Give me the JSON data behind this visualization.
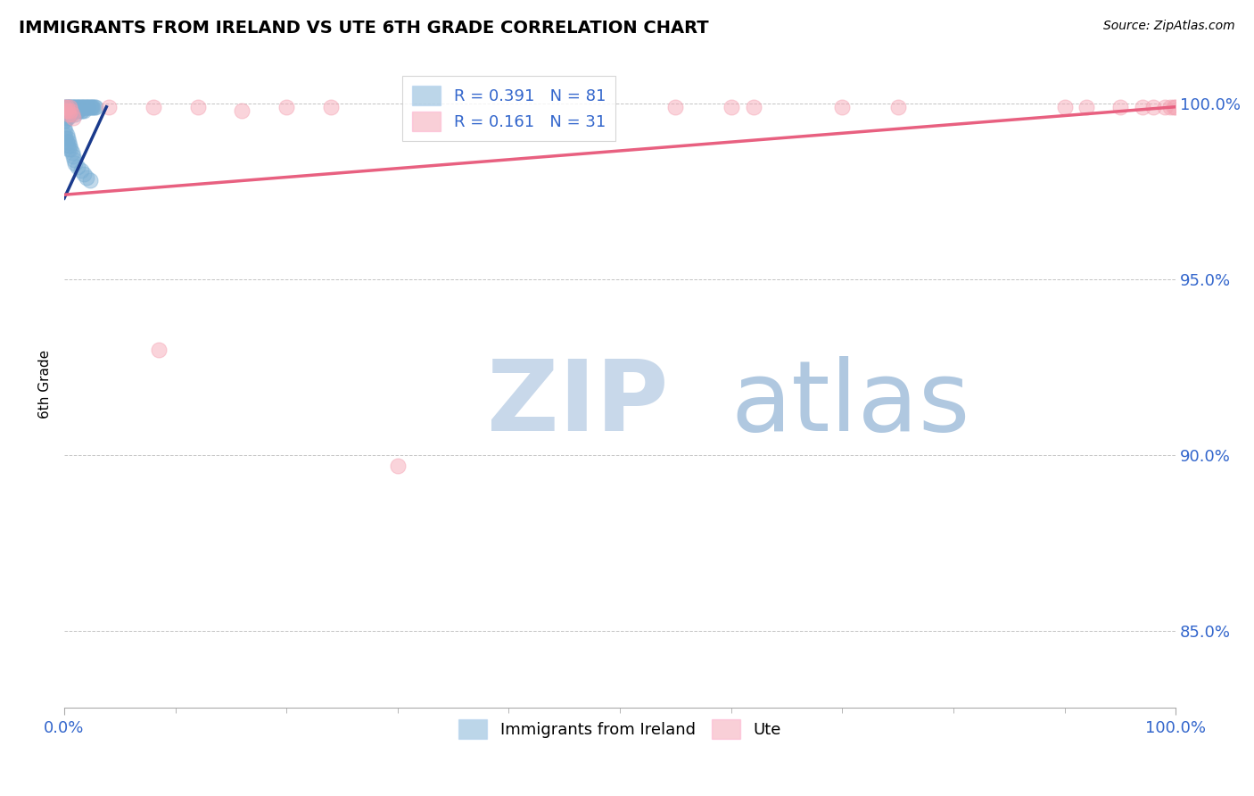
{
  "title": "IMMIGRANTS FROM IRELAND VS UTE 6TH GRADE CORRELATION CHART",
  "source_text": "Source: ZipAtlas.com",
  "ylabel": "6th Grade",
  "x_min": 0.0,
  "x_max": 1.0,
  "y_min": 0.828,
  "y_max": 1.012,
  "y_ticks": [
    0.85,
    0.9,
    0.95,
    1.0
  ],
  "y_tick_labels": [
    "85.0%",
    "90.0%",
    "95.0%",
    "100.0%"
  ],
  "x_tick_labels": [
    "0.0%",
    "100.0%"
  ],
  "legend_r1": "R = 0.391",
  "legend_n1": "N = 81",
  "legend_r2": "R = 0.161",
  "legend_n2": "N = 31",
  "blue_color": "#7BAFD4",
  "pink_color": "#F4A0B0",
  "blue_line_color": "#1A3A8C",
  "pink_line_color": "#E86080",
  "watermark_zip_color": "#C8D8EA",
  "watermark_atlas_color": "#B0C8E0",
  "dashed_line_y": 0.999,
  "blue_line_x0": 0.0,
  "blue_line_y0": 0.973,
  "blue_line_x1": 0.038,
  "blue_line_y1": 0.999,
  "pink_line_x0": 0.0,
  "pink_line_y0": 0.974,
  "pink_line_x1": 1.0,
  "pink_line_y1": 0.999,
  "blue_scatter_x": [
    0.0,
    0.0,
    0.0,
    0.0,
    0.0,
    0.001,
    0.001,
    0.001,
    0.001,
    0.001,
    0.002,
    0.002,
    0.002,
    0.002,
    0.003,
    0.003,
    0.003,
    0.003,
    0.004,
    0.004,
    0.004,
    0.005,
    0.005,
    0.005,
    0.006,
    0.006,
    0.006,
    0.007,
    0.007,
    0.008,
    0.008,
    0.009,
    0.009,
    0.01,
    0.01,
    0.01,
    0.011,
    0.011,
    0.012,
    0.012,
    0.013,
    0.013,
    0.014,
    0.015,
    0.015,
    0.016,
    0.016,
    0.017,
    0.018,
    0.018,
    0.019,
    0.02,
    0.021,
    0.022,
    0.023,
    0.024,
    0.025,
    0.026,
    0.027,
    0.028,
    0.0,
    0.0,
    0.001,
    0.001,
    0.002,
    0.002,
    0.003,
    0.003,
    0.004,
    0.004,
    0.005,
    0.006,
    0.007,
    0.008,
    0.009,
    0.01,
    0.012,
    0.015,
    0.018,
    0.02,
    0.023
  ],
  "blue_scatter_y": [
    0.999,
    0.998,
    0.997,
    0.996,
    0.995,
    0.999,
    0.998,
    0.997,
    0.996,
    0.995,
    0.999,
    0.998,
    0.997,
    0.996,
    0.999,
    0.998,
    0.997,
    0.996,
    0.999,
    0.998,
    0.997,
    0.999,
    0.998,
    0.997,
    0.999,
    0.998,
    0.997,
    0.999,
    0.998,
    0.999,
    0.998,
    0.999,
    0.998,
    0.999,
    0.998,
    0.997,
    0.999,
    0.998,
    0.999,
    0.998,
    0.999,
    0.998,
    0.999,
    0.999,
    0.998,
    0.999,
    0.998,
    0.999,
    0.999,
    0.998,
    0.999,
    0.999,
    0.999,
    0.999,
    0.999,
    0.999,
    0.999,
    0.999,
    0.999,
    0.999,
    0.993,
    0.991,
    0.992,
    0.99,
    0.991,
    0.989,
    0.99,
    0.988,
    0.989,
    0.987,
    0.988,
    0.987,
    0.986,
    0.985,
    0.984,
    0.983,
    0.982,
    0.981,
    0.98,
    0.979,
    0.978
  ],
  "pink_scatter_x": [
    0.0,
    0.001,
    0.002,
    0.003,
    0.004,
    0.005,
    0.006,
    0.007,
    0.008,
    0.04,
    0.08,
    0.12,
    0.16,
    0.2,
    0.24,
    0.55,
    0.6,
    0.62,
    0.7,
    0.75,
    0.9,
    0.92,
    0.95,
    0.97,
    0.98,
    0.99,
    0.995,
    0.998,
    1.0,
    0.085,
    0.3
  ],
  "pink_scatter_y": [
    0.999,
    0.998,
    0.999,
    0.998,
    0.997,
    0.999,
    0.998,
    0.997,
    0.996,
    0.999,
    0.999,
    0.999,
    0.998,
    0.999,
    0.999,
    0.999,
    0.999,
    0.999,
    0.999,
    0.999,
    0.999,
    0.999,
    0.999,
    0.999,
    0.999,
    0.999,
    0.999,
    0.999,
    0.999,
    0.93,
    0.897
  ]
}
